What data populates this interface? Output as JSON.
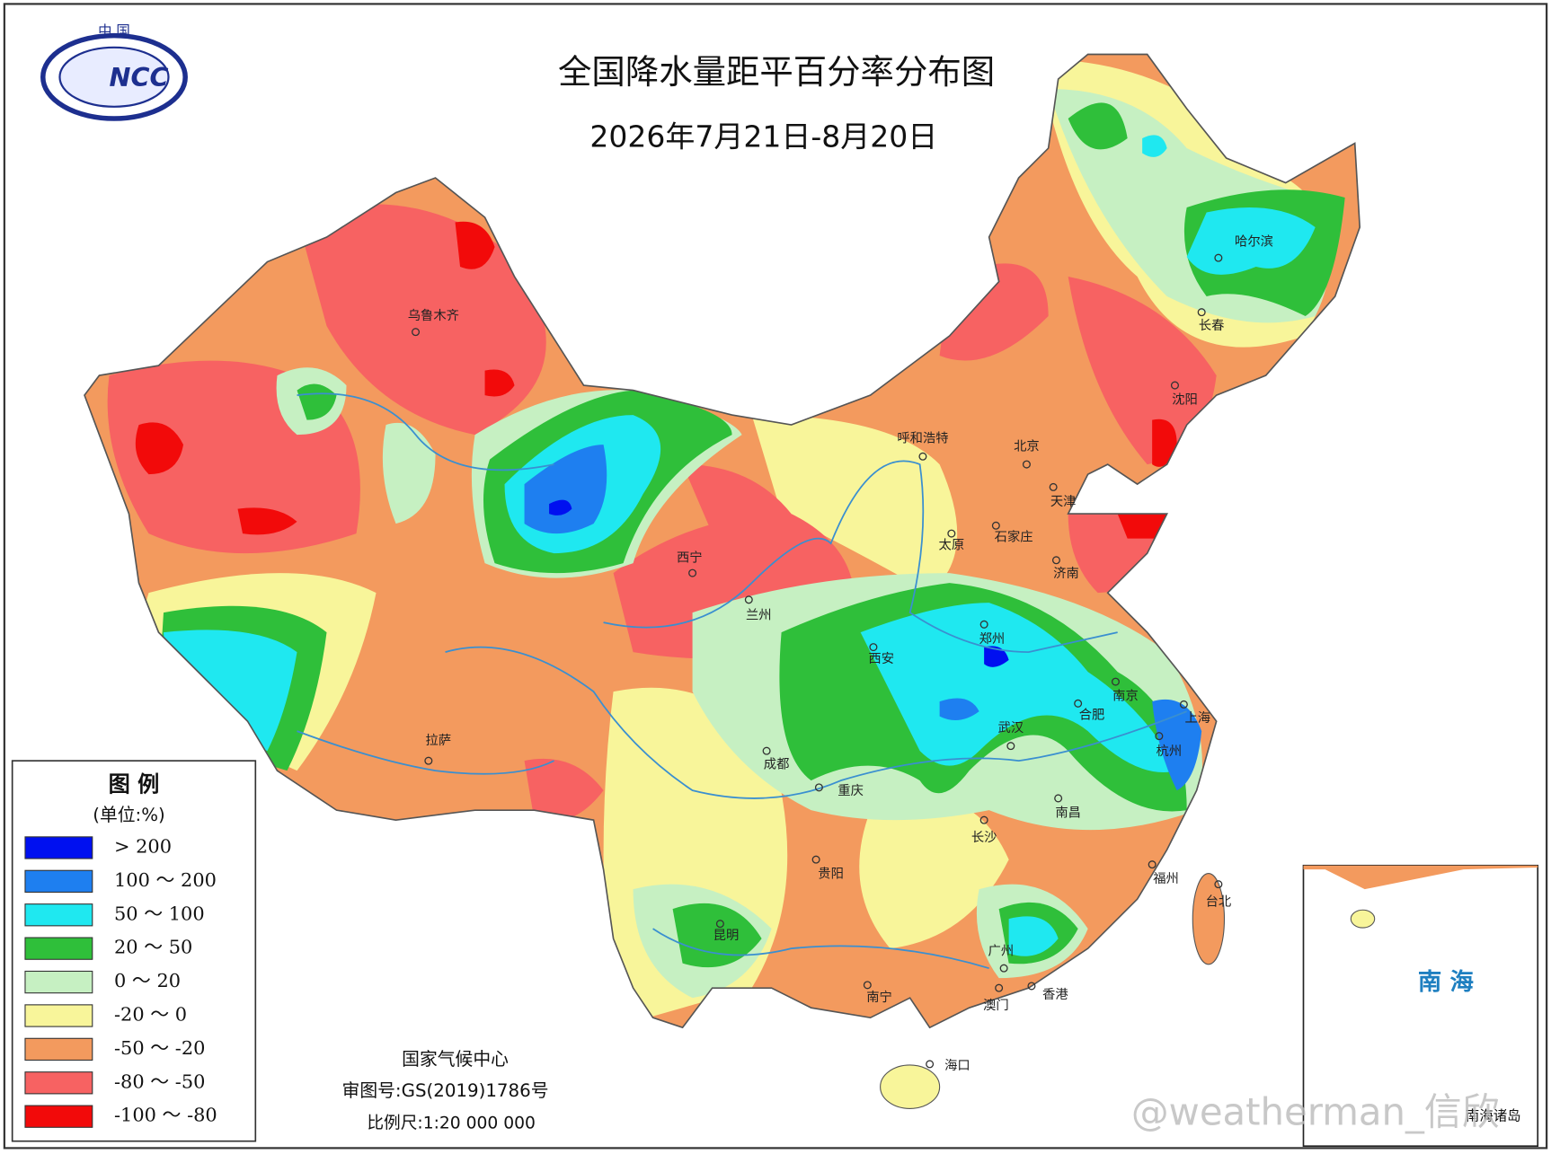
{
  "header": {
    "logo_text": "中 国",
    "logo_name": "NCC",
    "title": "全国降水量距平百分率分布图",
    "subtitle": "2026年7月21日-8月20日"
  },
  "legend": {
    "title": "图 例",
    "unit": "(单位:%)",
    "items": [
      {
        "label": "> 200",
        "color": "#0010f0"
      },
      {
        "label": "100 ～ 200",
        "color": "#1e7ff0"
      },
      {
        "label": "50 ～ 100",
        "color": "#1fe8f0"
      },
      {
        "label": "20 ～ 50",
        "color": "#2fbf3a"
      },
      {
        "label": "0 ～ 20",
        "color": "#c6f0c2"
      },
      {
        "label": "-20 ～ 0",
        "color": "#f8f59a"
      },
      {
        "label": "-50 ～ -20",
        "color": "#f39a5e"
      },
      {
        "label": "-80 ～ -50",
        "color": "#f76262"
      },
      {
        "label": "-100 ～ -80",
        "color": "#f20a0a"
      }
    ]
  },
  "cities": [
    "乌鲁木齐",
    "呼和浩特",
    "北京",
    "天津",
    "沈阳",
    "长春",
    "哈尔滨",
    "石家庄",
    "太原",
    "济南",
    "西宁",
    "兰州",
    "郑州",
    "西安",
    "南京",
    "合肥",
    "上海",
    "杭州",
    "武汉",
    "成都",
    "重庆",
    "南昌",
    "长沙",
    "拉萨",
    "贵阳",
    "福州",
    "台北",
    "昆明",
    "广州",
    "南宁",
    "澳门",
    "香港",
    "海口"
  ],
  "footer": {
    "org": "国家气候中心",
    "approval": "审图号:GS(2019)1786号",
    "scale": "比例尺:1:20 000 000"
  },
  "inset": {
    "label": "南 海",
    "caption": "南海诸岛"
  },
  "watermark": "@weatherman_信欣"
}
